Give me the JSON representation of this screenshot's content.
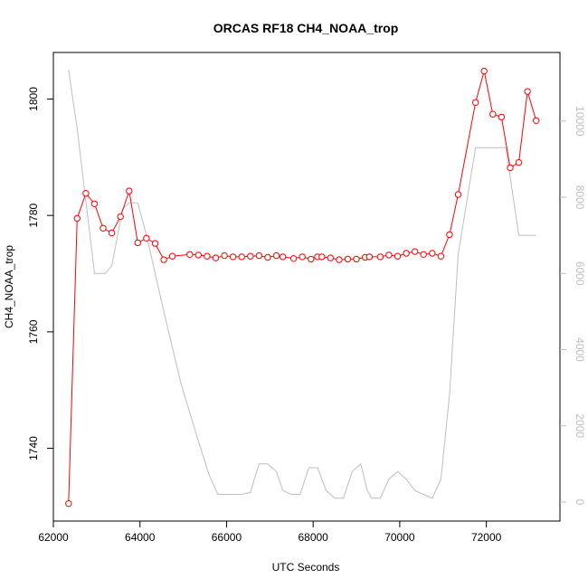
{
  "chart_data": {
    "type": "line",
    "title": "ORCAS RF18 CH4_NOAA_trop",
    "xlabel": "UTC Seconds",
    "ylabel": "CH4_NOAA_trop",
    "xlim": [
      62000,
      73700
    ],
    "ylim": [
      1727.5,
      1808
    ],
    "y2lim": [
      -500,
      11800
    ],
    "x_ticks": [
      62000,
      64000,
      66000,
      68000,
      70000,
      72000
    ],
    "y_ticks": [
      1740,
      1760,
      1780,
      1800
    ],
    "y2_ticks": [
      0,
      2000,
      4000,
      6000,
      8000,
      10000
    ],
    "series": [
      {
        "axis": "left",
        "color": "#ff0000",
        "x": [
          62350,
          62550,
          62750,
          62950,
          63150,
          63350,
          63550,
          63750,
          63950,
          64150,
          64350,
          64550,
          64750,
          65150,
          65350,
          65550,
          65750,
          65950,
          66150,
          66350,
          66550,
          66750,
          66950,
          67150,
          67300,
          67550,
          67750,
          67950,
          68100,
          68200,
          68400,
          68600,
          68800,
          69000,
          69200,
          69300,
          69550,
          69750,
          69950,
          70150,
          70350,
          70550,
          70750,
          70950,
          71150,
          71350,
          71750,
          71950,
          72150,
          72350,
          72550,
          72750,
          72950,
          73150
        ],
        "y": [
          1730.5,
          1779.5,
          1783.8,
          1782.0,
          1777.8,
          1777.0,
          1779.8,
          1784.2,
          1775.3,
          1776.1,
          1775.2,
          1772.4,
          1773.0,
          1773.3,
          1773.2,
          1773.0,
          1772.7,
          1773.1,
          1772.9,
          1772.9,
          1773.0,
          1773.1,
          1772.8,
          1773.1,
          1772.9,
          1772.6,
          1772.9,
          1772.5,
          1772.9,
          1772.9,
          1772.7,
          1772.4,
          1772.5,
          1772.5,
          1772.8,
          1772.9,
          1772.9,
          1773.2,
          1773.0,
          1773.5,
          1773.8,
          1773.3,
          1773.5,
          1773.0,
          1776.7,
          1783.6,
          1799.4,
          1804.8,
          1797.4,
          1796.9,
          1788.2,
          1789.1,
          1801.3,
          1796.3
        ]
      },
      {
        "axis": "right",
        "color": "#bebebe",
        "x": [
          62350,
          62550,
          62950,
          63200,
          63350,
          63600,
          63750,
          63950,
          64150,
          64550,
          64950,
          65350,
          65600,
          65800,
          66150,
          66350,
          66550,
          66750,
          66950,
          67150,
          67300,
          67500,
          67700,
          67900,
          68100,
          68300,
          68500,
          68700,
          68900,
          69100,
          69250,
          69350,
          69550,
          69750,
          69950,
          70150,
          70350,
          70550,
          70750,
          70950,
          71150,
          71350,
          71750,
          72150,
          72450,
          72750,
          72950,
          73150
        ],
        "y": [
          11350,
          9800,
          6000,
          6000,
          6200,
          7700,
          7850,
          7850,
          7000,
          5000,
          3100,
          1600,
          700,
          200,
          200,
          200,
          250,
          1000,
          1000,
          800,
          300,
          200,
          200,
          900,
          900,
          300,
          100,
          100,
          800,
          1000,
          300,
          100,
          100,
          600,
          800,
          600,
          300,
          200,
          100,
          600,
          2800,
          6500,
          9300,
          9300,
          9300,
          7000,
          7000,
          7000
        ]
      }
    ]
  }
}
